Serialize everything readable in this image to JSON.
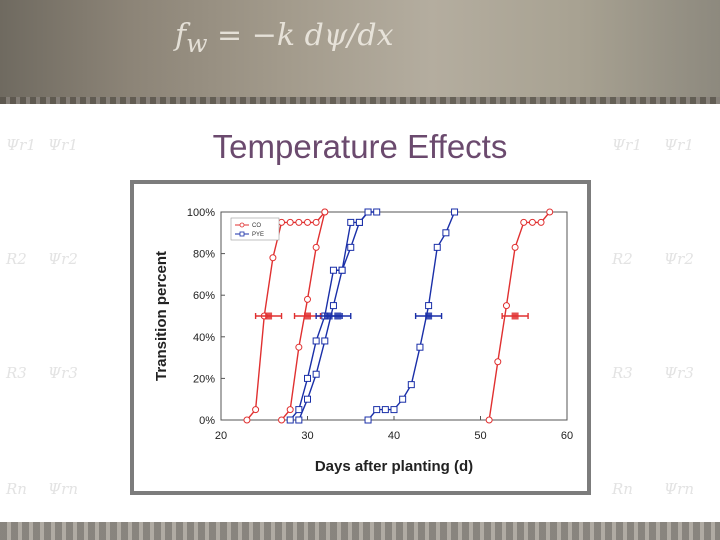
{
  "slide": {
    "title": "Temperature Effects"
  },
  "colors": {
    "red_series": "#e03030",
    "blue_series": "#1a2fa8",
    "title": "#6b4a6e"
  },
  "chart_data": {
    "type": "line",
    "xlabel": "Days after planting (d)",
    "ylabel": "Transition percent",
    "xlim": [
      20,
      60
    ],
    "ylim": [
      0,
      100
    ],
    "xticks": [
      20,
      30,
      40,
      50,
      60
    ],
    "yticks": [
      0,
      20,
      40,
      60,
      80,
      100
    ],
    "ytick_labels": [
      "0%",
      "20%",
      "40%",
      "60%",
      "80%",
      "100%"
    ],
    "grid": false,
    "legend": {
      "position": "top-left",
      "entries": [
        "CO",
        "PYE"
      ]
    },
    "series": [
      {
        "name": "CO",
        "color": "#e03030",
        "marker": "circle",
        "line": 1,
        "x": [
          23,
          24,
          25,
          26,
          27,
          28,
          29,
          30,
          31,
          32
        ],
        "y": [
          0,
          5,
          50,
          78,
          95,
          95,
          95,
          95,
          95,
          100
        ]
      },
      {
        "name": "CO",
        "color": "#e03030",
        "marker": "circle",
        "line": 2,
        "x": [
          27,
          28,
          29,
          30,
          31,
          32
        ],
        "y": [
          0,
          5,
          35,
          58,
          83,
          100
        ]
      },
      {
        "name": "CO",
        "color": "#e03030",
        "marker": "circle",
        "line": 3,
        "x": [
          51,
          52,
          53,
          54,
          55,
          56,
          57,
          58
        ],
        "y": [
          0,
          28,
          55,
          83,
          95,
          95,
          95,
          100
        ]
      },
      {
        "name": "PYE",
        "color": "#1a2fa8",
        "marker": "square",
        "line": 1,
        "x": [
          28,
          29,
          30,
          31,
          32,
          33,
          34,
          35,
          36,
          37
        ],
        "y": [
          0,
          5,
          20,
          38,
          50,
          72,
          72,
          95,
          95,
          100
        ]
      },
      {
        "name": "PYE",
        "color": "#1a2fa8",
        "marker": "square",
        "line": 2,
        "x": [
          29,
          30,
          31,
          32,
          33,
          34,
          35,
          36,
          37,
          38
        ],
        "y": [
          0,
          10,
          22,
          38,
          55,
          72,
          83,
          95,
          100,
          100
        ]
      },
      {
        "name": "PYE",
        "color": "#1a2fa8",
        "marker": "square",
        "line": 3,
        "x": [
          37,
          38,
          39,
          40,
          41,
          42,
          43,
          44,
          45,
          46,
          47
        ],
        "y": [
          0,
          5,
          5,
          5,
          10,
          17,
          35,
          55,
          83,
          90,
          100
        ]
      }
    ],
    "midpoints": [
      {
        "color": "#e03030",
        "x": 25.5,
        "y": 50,
        "err": 1.5
      },
      {
        "color": "#e03030",
        "x": 30,
        "y": 50,
        "err": 1.5
      },
      {
        "color": "#1a2fa8",
        "x": 32.5,
        "y": 50,
        "err": 1.5
      },
      {
        "color": "#1a2fa8",
        "x": 33.5,
        "y": 50,
        "err": 1.5
      },
      {
        "color": "#1a2fa8",
        "x": 44,
        "y": 50,
        "err": 1.5
      },
      {
        "color": "#e03030",
        "x": 54,
        "y": 50,
        "err": 1.5
      }
    ]
  }
}
